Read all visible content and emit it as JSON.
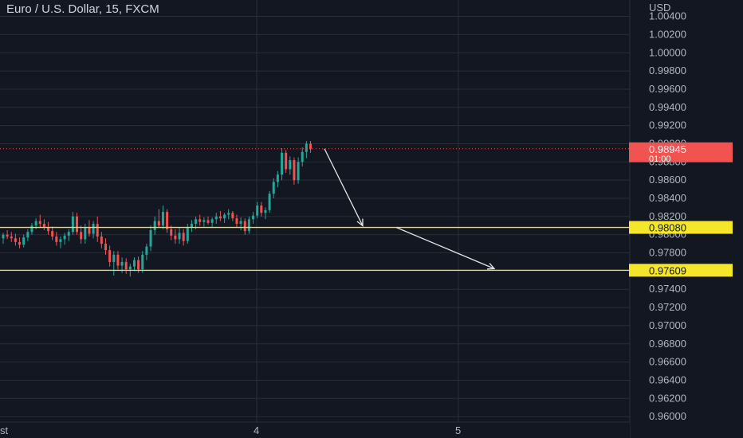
{
  "header": {
    "symbol_title": "Euro / U.S. Dollar, 15, FXCM"
  },
  "colors": {
    "background": "#131722",
    "grid": "#2a2e39",
    "up_candle": "#26a69a",
    "down_candle": "#ef5350",
    "level_line": "#f5e62a",
    "price_badge": "#f05350",
    "axis_text": "#b2b5be",
    "arrow": "#e6e6e6"
  },
  "chart_data": {
    "type": "candlestick",
    "title": "Euro / U.S. Dollar, 15, FXCM",
    "ylabel": "USD",
    "ylim": [
      0.9594,
      1.0058
    ],
    "y_ticks": [
      "1.00400",
      "1.00200",
      "1.00000",
      "0.99800",
      "0.99600",
      "0.99400",
      "0.99200",
      "0.99000",
      "0.98800",
      "0.98600",
      "0.98400",
      "0.98200",
      "0.98000",
      "0.97800",
      "0.97600",
      "0.97400",
      "0.97200",
      "0.97000",
      "0.96800",
      "0.96600",
      "0.96400",
      "0.96200",
      "0.96000"
    ],
    "x_ticks": [
      "st",
      "4",
      "5"
    ],
    "grid": true,
    "levels": [
      {
        "label": "0.98080",
        "value": 0.9808
      },
      {
        "label": "0.97609",
        "value": 0.97609
      }
    ],
    "last_price": {
      "label": "0.98945",
      "countdown": "01:00",
      "value": 0.98945
    },
    "projection_arrows": [
      {
        "from": 0.98945,
        "to": 0.9808
      },
      {
        "from": 0.9808,
        "to": 0.97609
      }
    ],
    "candles": [
      [
        0.9796,
        0.9802,
        0.979,
        0.98
      ],
      [
        0.98,
        0.9805,
        0.9795,
        0.9798
      ],
      [
        0.9798,
        0.9803,
        0.9792,
        0.9796
      ],
      [
        0.9796,
        0.9801,
        0.9788,
        0.9792
      ],
      [
        0.9792,
        0.9797,
        0.9785,
        0.9789
      ],
      [
        0.9789,
        0.98,
        0.9786,
        0.9797
      ],
      [
        0.9797,
        0.9806,
        0.9793,
        0.9803
      ],
      [
        0.9803,
        0.9813,
        0.98,
        0.981
      ],
      [
        0.981,
        0.9818,
        0.9806,
        0.9815
      ],
      [
        0.9815,
        0.9822,
        0.9808,
        0.9812
      ],
      [
        0.9812,
        0.9817,
        0.9805,
        0.9808
      ],
      [
        0.9808,
        0.9814,
        0.98,
        0.9804
      ],
      [
        0.9804,
        0.9809,
        0.9794,
        0.9798
      ],
      [
        0.9798,
        0.9803,
        0.9788,
        0.9792
      ],
      [
        0.9792,
        0.9798,
        0.9785,
        0.9795
      ],
      [
        0.9795,
        0.9802,
        0.9789,
        0.9799
      ],
      [
        0.9799,
        0.9806,
        0.9793,
        0.9803
      ],
      [
        0.9803,
        0.9825,
        0.98,
        0.982
      ],
      [
        0.982,
        0.9824,
        0.98,
        0.9803
      ],
      [
        0.9803,
        0.981,
        0.979,
        0.9795
      ],
      [
        0.9795,
        0.9812,
        0.979,
        0.9808
      ],
      [
        0.9808,
        0.9816,
        0.9798,
        0.9801
      ],
      [
        0.9801,
        0.9815,
        0.9796,
        0.9812
      ],
      [
        0.9812,
        0.982,
        0.9792,
        0.9798
      ],
      [
        0.9798,
        0.9803,
        0.9785,
        0.979
      ],
      [
        0.979,
        0.9796,
        0.9778,
        0.9783
      ],
      [
        0.9783,
        0.9788,
        0.9765,
        0.977
      ],
      [
        0.977,
        0.9782,
        0.9755,
        0.9778
      ],
      [
        0.9778,
        0.9782,
        0.9762,
        0.9766
      ],
      [
        0.9766,
        0.9775,
        0.9758,
        0.977
      ],
      [
        0.977,
        0.9774,
        0.9757,
        0.9762
      ],
      [
        0.9762,
        0.9768,
        0.9754,
        0.9765
      ],
      [
        0.9765,
        0.9775,
        0.976,
        0.9772
      ],
      [
        0.9772,
        0.9776,
        0.9758,
        0.9762
      ],
      [
        0.9762,
        0.9782,
        0.9758,
        0.9778
      ],
      [
        0.9778,
        0.979,
        0.9772,
        0.9787
      ],
      [
        0.9787,
        0.981,
        0.9782,
        0.9805
      ],
      [
        0.9805,
        0.982,
        0.98,
        0.9815
      ],
      [
        0.9815,
        0.9828,
        0.9808,
        0.981
      ],
      [
        0.981,
        0.9832,
        0.9806,
        0.9825
      ],
      [
        0.9825,
        0.9828,
        0.9802,
        0.9806
      ],
      [
        0.9806,
        0.981,
        0.9794,
        0.9799
      ],
      [
        0.9799,
        0.9806,
        0.979,
        0.9795
      ],
      [
        0.9795,
        0.9808,
        0.979,
        0.9802
      ],
      [
        0.9802,
        0.9806,
        0.9788,
        0.9793
      ],
      [
        0.9793,
        0.9812,
        0.979,
        0.9808
      ],
      [
        0.9808,
        0.9816,
        0.9803,
        0.9812
      ],
      [
        0.9812,
        0.982,
        0.9806,
        0.9817
      ],
      [
        0.9817,
        0.9822,
        0.981,
        0.9814
      ],
      [
        0.9814,
        0.9819,
        0.9809,
        0.9816
      ],
      [
        0.9816,
        0.982,
        0.9811,
        0.9813
      ],
      [
        0.9813,
        0.9819,
        0.9808,
        0.9817
      ],
      [
        0.9817,
        0.9824,
        0.9812,
        0.982
      ],
      [
        0.982,
        0.9826,
        0.9815,
        0.9818
      ],
      [
        0.9818,
        0.9824,
        0.9813,
        0.9822
      ],
      [
        0.9822,
        0.9828,
        0.9817,
        0.9824
      ],
      [
        0.9824,
        0.9826,
        0.9815,
        0.9818
      ],
      [
        0.9818,
        0.9822,
        0.9808,
        0.9812
      ],
      [
        0.9812,
        0.9819,
        0.9805,
        0.9815
      ],
      [
        0.9815,
        0.9818,
        0.98,
        0.9804
      ],
      [
        0.9804,
        0.982,
        0.9801,
        0.9817
      ],
      [
        0.9817,
        0.9825,
        0.9812,
        0.9821
      ],
      [
        0.9821,
        0.9836,
        0.9818,
        0.9832
      ],
      [
        0.9832,
        0.9836,
        0.982,
        0.9824
      ],
      [
        0.9824,
        0.983,
        0.9817,
        0.9827
      ],
      [
        0.9827,
        0.9848,
        0.9824,
        0.9845
      ],
      [
        0.9845,
        0.9862,
        0.984,
        0.9858
      ],
      [
        0.9858,
        0.987,
        0.9852,
        0.9866
      ],
      [
        0.9866,
        0.9895,
        0.986,
        0.989
      ],
      [
        0.989,
        0.9893,
        0.9868,
        0.9872
      ],
      [
        0.9872,
        0.9886,
        0.9866,
        0.9882
      ],
      [
        0.9882,
        0.9885,
        0.9855,
        0.986
      ],
      [
        0.986,
        0.9885,
        0.9856,
        0.988
      ],
      [
        0.988,
        0.9896,
        0.9875,
        0.9891
      ],
      [
        0.9891,
        0.9903,
        0.9884,
        0.99
      ],
      [
        0.99,
        0.9903,
        0.989,
        0.9894
      ]
    ]
  }
}
